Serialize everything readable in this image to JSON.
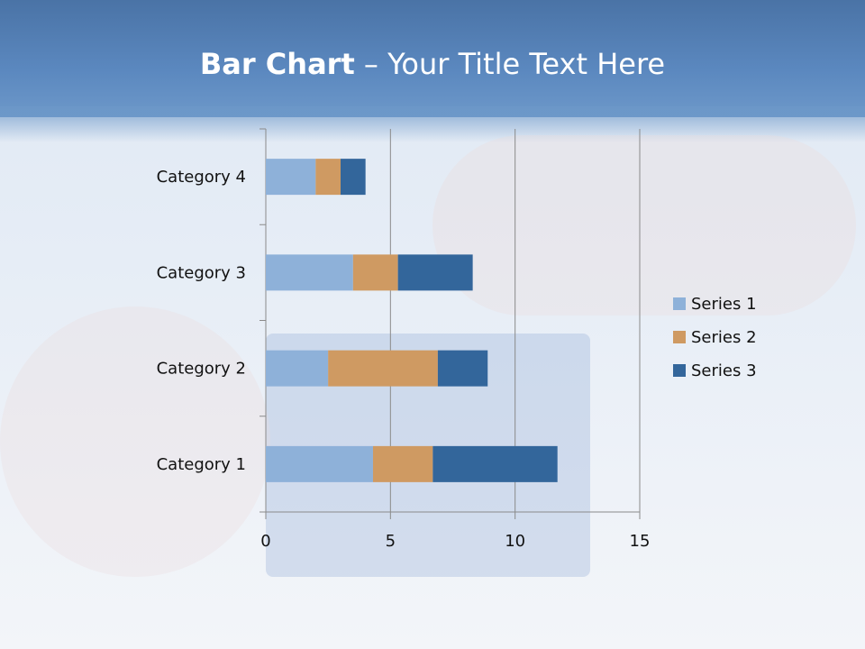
{
  "title": {
    "bold": "Bar Chart",
    "rest": " – Your Title Text Here"
  },
  "chart_data": {
    "type": "bar",
    "orientation": "horizontal",
    "stacked": true,
    "categories": [
      "Category 1",
      "Category 2",
      "Category 3",
      "Category 4"
    ],
    "series": [
      {
        "name": "Series 1",
        "values": [
          4.3,
          2.5,
          3.5,
          2.0
        ],
        "color": "#8eb1d9"
      },
      {
        "name": "Series 2",
        "values": [
          2.4,
          4.4,
          1.8,
          1.0
        ],
        "color": "#cf9a62"
      },
      {
        "name": "Series 3",
        "values": [
          5.0,
          2.0,
          3.0,
          1.0
        ],
        "color": "#33669b"
      }
    ],
    "xlim": [
      0,
      15
    ],
    "xticks": [
      "0",
      "5",
      "10",
      "15"
    ],
    "grid": true,
    "legend": "right"
  }
}
